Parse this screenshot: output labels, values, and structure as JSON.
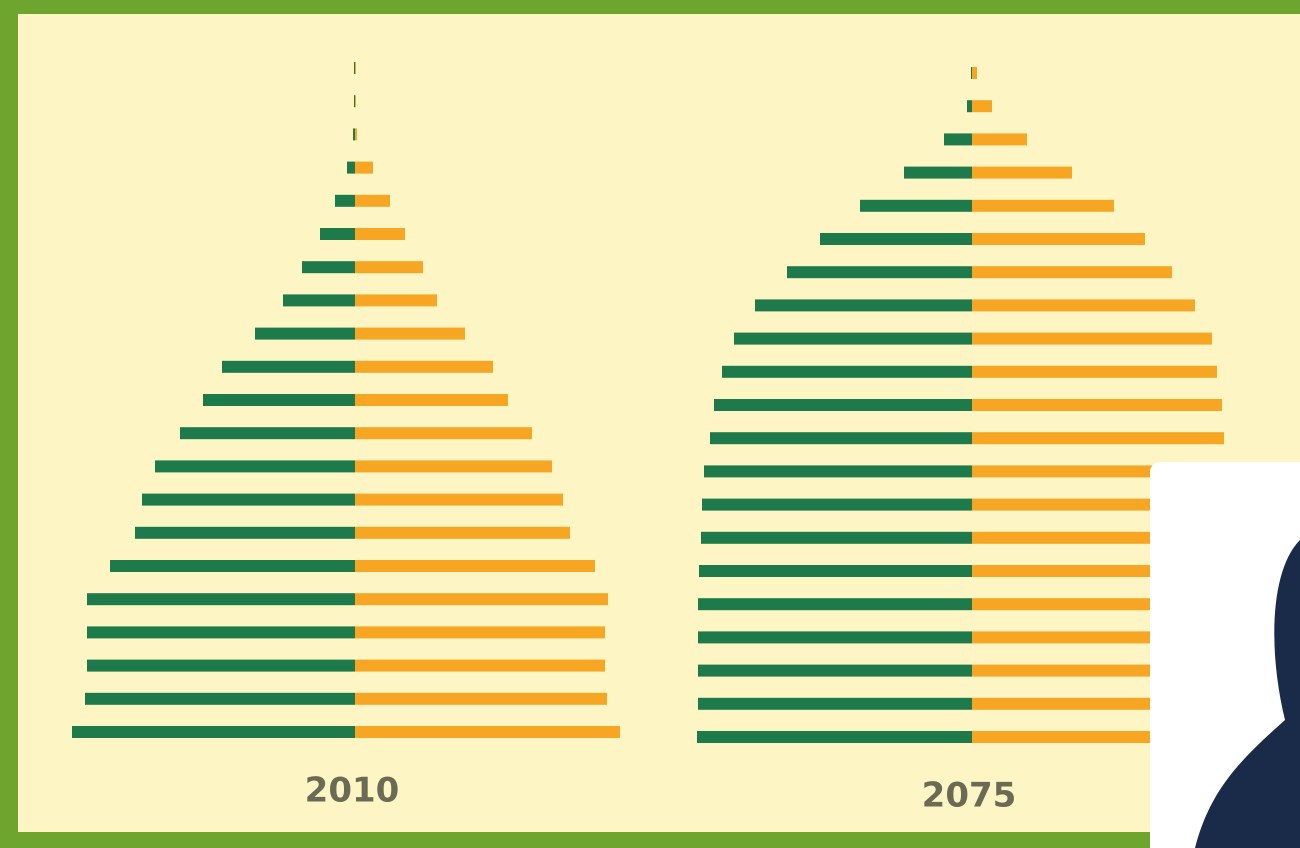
{
  "chart_data": [
    {
      "type": "pyramid",
      "title": "2010",
      "categories": [
        null,
        null,
        null,
        null,
        null,
        null,
        null,
        null,
        null,
        null,
        null,
        null,
        null,
        null,
        null,
        null,
        null,
        null,
        null,
        null,
        null
      ],
      "series": [
        {
          "color": "#1e7a4b",
          "values": [
            1,
            1,
            2,
            8,
            20,
            35,
            53,
            72,
            100,
            133,
            152,
            175,
            200,
            213,
            220,
            245,
            268,
            268,
            268,
            270,
            283
          ]
        },
        {
          "color": "#f6a623",
          "values": [
            1,
            1,
            2,
            18,
            35,
            50,
            68,
            82,
            110,
            138,
            153,
            177,
            197,
            208,
            215,
            240,
            253,
            250,
            250,
            252,
            265
          ]
        }
      ]
    },
    {
      "type": "pyramid",
      "title": "2075",
      "categories": [
        null,
        null,
        null,
        null,
        null,
        null,
        null,
        null,
        null,
        null,
        null,
        null,
        null,
        null,
        null,
        null,
        null,
        null,
        null,
        null,
        null
      ],
      "series": [
        {
          "color": "#1e7a4b",
          "values": [
            1,
            5,
            28,
            68,
            112,
            152,
            185,
            217,
            238,
            250,
            258,
            262,
            268,
            270,
            271,
            273,
            274,
            274,
            274,
            274,
            275
          ]
        },
        {
          "color": "#f6a623",
          "values": [
            5,
            20,
            55,
            100,
            142,
            173,
            200,
            223,
            240,
            245,
            250,
            252,
            252,
            252,
            252,
            252,
            252,
            252,
            252,
            252,
            252
          ]
        }
      ]
    }
  ]
}
